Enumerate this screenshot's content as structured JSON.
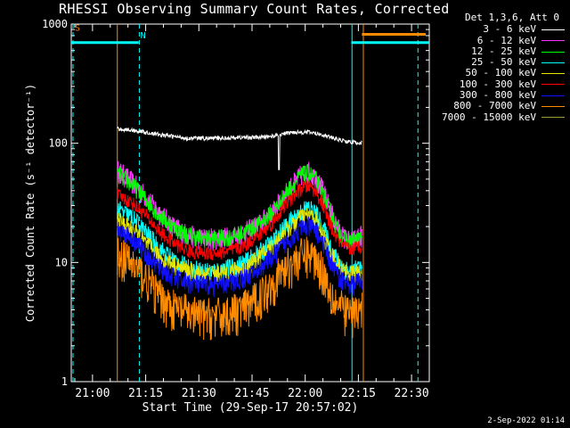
{
  "chart_data": {
    "type": "line",
    "title": "RHESSI Observing Summary Count Rates, Corrected",
    "xlabel": "Start Time (29-Sep-17 20:57:02)",
    "ylabel": "Corrected Count Rate (s⁻¹ detector⁻¹)",
    "ylog": true,
    "ylim": [
      1,
      1000
    ],
    "xlim_min": [
      -3,
      98
    ],
    "x_ticks": [
      {
        "t": 3,
        "label": "21:00"
      },
      {
        "t": 18,
        "label": "21:15"
      },
      {
        "t": 33,
        "label": "21:30"
      },
      {
        "t": 48,
        "label": "21:45"
      },
      {
        "t": 63,
        "label": "22:00"
      },
      {
        "t": 78,
        "label": "22:15"
      },
      {
        "t": 93,
        "label": "22:30"
      }
    ],
    "y_ticks": [
      {
        "v": 1,
        "label": "1"
      },
      {
        "v": 10,
        "label": "10"
      },
      {
        "v": 100,
        "label": "100"
      },
      {
        "v": 1000,
        "label": "1000"
      }
    ],
    "legend_header": "Det 1,3,6, Att 0",
    "series": [
      {
        "name": "3 - 6 keV",
        "color": "#ffffff",
        "x": [
          10,
          15,
          22,
          30,
          38,
          45,
          50,
          54,
          56,
          58,
          60,
          64,
          68,
          71,
          75,
          79
        ],
        "y": [
          132,
          128,
          118,
          110,
          110,
          112,
          112,
          115,
          118,
          122,
          124,
          124,
          118,
          110,
          103,
          100
        ]
      },
      {
        "name": "6 - 12 keV",
        "color": "#ff33ff",
        "x": [
          10,
          14,
          18,
          22,
          26,
          30,
          34,
          38,
          42,
          46,
          50,
          54,
          58,
          62,
          64,
          66,
          68,
          70,
          72,
          74,
          76,
          79
        ],
        "y": [
          60,
          48,
          36,
          26,
          20,
          17,
          16,
          16,
          16.5,
          18,
          21,
          27,
          40,
          55,
          58,
          52,
          40,
          28,
          20,
          16,
          15,
          17
        ]
      },
      {
        "name": "12 - 25 keV",
        "color": "#00ff00",
        "x": [
          10,
          14,
          18,
          22,
          26,
          30,
          34,
          38,
          42,
          46,
          50,
          54,
          58,
          62,
          64,
          66,
          68,
          70,
          72,
          74,
          76,
          79
        ],
        "y": [
          56,
          46,
          34,
          25,
          19.5,
          17,
          16,
          16,
          16.5,
          18,
          21,
          27,
          40,
          54,
          57,
          50,
          38,
          27,
          19.5,
          16,
          15,
          16
        ]
      },
      {
        "name": "25 - 50 keV",
        "color": "#00ffff",
        "x": [
          10,
          14,
          18,
          22,
          26,
          30,
          34,
          38,
          42,
          46,
          50,
          54,
          58,
          62,
          64,
          66,
          68,
          70,
          72,
          74,
          76,
          79
        ],
        "y": [
          28,
          24,
          18,
          13,
          10.5,
          9,
          8.5,
          8.5,
          9,
          10,
          12,
          15,
          21,
          27,
          29,
          26,
          20,
          14,
          10.5,
          9,
          8.5,
          9
        ]
      },
      {
        "name": "50 - 100 keV",
        "color": "#e6e600",
        "x": [
          10,
          14,
          18,
          22,
          26,
          30,
          34,
          38,
          42,
          46,
          50,
          54,
          58,
          62,
          64,
          66,
          68,
          70,
          72,
          74,
          76,
          79
        ],
        "y": [
          23,
          19,
          14.5,
          11,
          9.5,
          8.5,
          8,
          8,
          8.5,
          9,
          11,
          14,
          19,
          24,
          25,
          23,
          17,
          12.5,
          10,
          8.5,
          8,
          8.5
        ]
      },
      {
        "name": "100 - 300 keV",
        "color": "#ff0000",
        "x": [
          10,
          14,
          18,
          22,
          26,
          30,
          34,
          38,
          42,
          46,
          50,
          54,
          58,
          62,
          64,
          66,
          68,
          70,
          72,
          74,
          76,
          79
        ],
        "y": [
          37,
          32,
          25,
          18,
          14.5,
          12.5,
          12,
          12,
          12.5,
          14,
          17,
          22,
          32,
          42,
          44,
          40,
          30,
          21,
          16,
          13.5,
          13,
          14
        ]
      },
      {
        "name": "300 - 800 keV",
        "color": "#1010ff",
        "x": [
          10,
          14,
          18,
          22,
          26,
          30,
          34,
          38,
          42,
          46,
          50,
          54,
          58,
          62,
          64,
          66,
          68,
          70,
          72,
          74,
          76,
          79
        ],
        "y": [
          19,
          16.5,
          12,
          9,
          7.5,
          6.8,
          6.5,
          6.5,
          6.8,
          7.5,
          9,
          11.5,
          15.5,
          19.5,
          20,
          19,
          15,
          10.5,
          8,
          7,
          6.5,
          7
        ]
      },
      {
        "name": "800 - 7000 keV",
        "color": "#ff8c00",
        "x": [
          10,
          14,
          18,
          22,
          26,
          30,
          34,
          38,
          42,
          46,
          50,
          54,
          58,
          62,
          64,
          66,
          68,
          70,
          72,
          74,
          76,
          79
        ],
        "y": [
          12,
          10,
          7.5,
          5.2,
          4.2,
          3.8,
          3.6,
          3.6,
          3.8,
          4.2,
          5.2,
          7,
          9.5,
          11.5,
          12,
          11,
          8.5,
          6,
          4.5,
          4,
          3.8,
          4
        ]
      },
      {
        "name": "7000 - 15000 keV",
        "color": "#999933",
        "x": [],
        "y": []
      }
    ],
    "annotations": [
      {
        "text": "S",
        "color": "#ff8c00",
        "x_min": -2,
        "y": 880
      },
      {
        "text": "N",
        "color": "#00ffff",
        "x_min": 16.5,
        "y": 760
      }
    ],
    "state_bars": [
      {
        "color": "#00ffff",
        "x_min": [
          -3,
          16
        ],
        "y": 700
      },
      {
        "color": "#00ffff",
        "x_min": [
          76,
          98
        ],
        "y": 700
      },
      {
        "color": "#ff8c00",
        "x_min": [
          79,
          97
        ],
        "y": 820
      }
    ],
    "vertical_lines": [
      {
        "color": "#00ffff",
        "style": "dashed",
        "x_min": -2.5
      },
      {
        "color": "#ff8c00",
        "style": "solid",
        "x_min": 10
      },
      {
        "color": "#00ffff",
        "style": "dashed",
        "x_min": 16.2
      },
      {
        "color": "#00ffff",
        "style": "solid",
        "x_min": 76.2
      },
      {
        "color": "#ff8c00",
        "style": "solid",
        "x_min": 79.4
      },
      {
        "color": "#00ffff",
        "style": "dashed",
        "x_min": 94.8
      }
    ]
  },
  "footer": {
    "date_stamp": "2-Sep-2022 01:14"
  }
}
